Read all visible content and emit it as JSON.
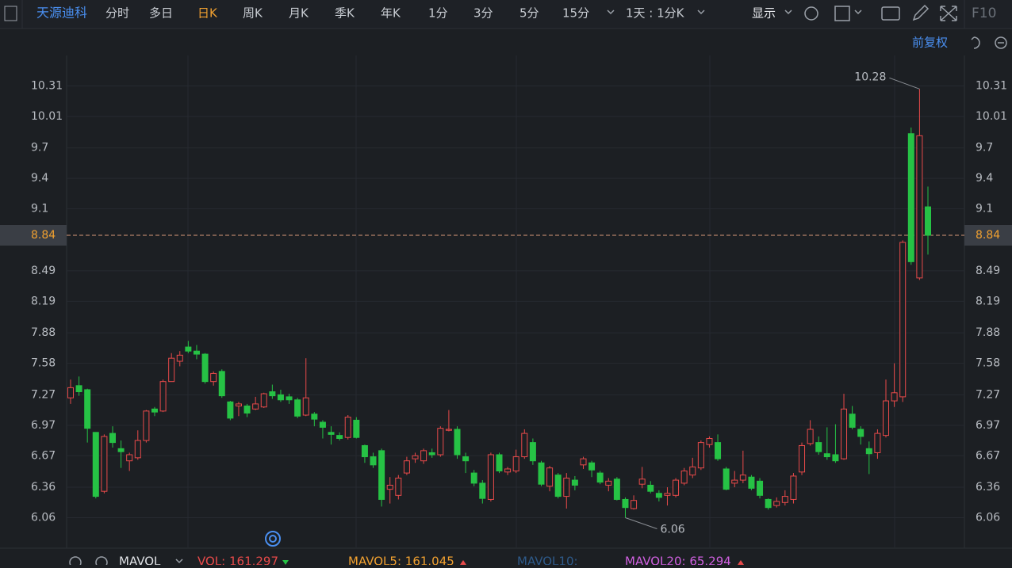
{
  "toolbar": {
    "stock": "天源迪科",
    "tabs": [
      "分时",
      "多日",
      "日K",
      "周K",
      "月K",
      "季K",
      "年K",
      "1分",
      "3分",
      "5分",
      "15分"
    ],
    "active_tab": 2,
    "period": "1天 : 1分K",
    "display": "显示",
    "f10": "F10"
  },
  "adjust": "前复权",
  "chart_data": {
    "type": "candlestick",
    "up_color": "#e84a4a",
    "down_color": "#26c245",
    "open": [
      7.24,
      7.36,
      7.32,
      6.9,
      6.32,
      6.89,
      6.74,
      6.62,
      6.65,
      6.82,
      7.13,
      7.11,
      7.4,
      7.6,
      7.74,
      7.7,
      7.67,
      7.4,
      7.5,
      7.2,
      7.16,
      7.16,
      7.13,
      7.15,
      7.3,
      7.27,
      7.25,
      7.22,
      7.07,
      7.08,
      7.0,
      6.9,
      6.87,
      6.85,
      7.02,
      6.77,
      6.66,
      6.72,
      6.34,
      6.28,
      6.5,
      6.64,
      6.62,
      6.7,
      6.68,
      6.92,
      6.93,
      6.66,
      6.5,
      6.4,
      6.24,
      6.68,
      6.51,
      6.52,
      6.66,
      6.8,
      6.6,
      6.37,
      6.48,
      6.27,
      6.43,
      6.58,
      6.6,
      6.5,
      6.38,
      6.44,
      6.24,
      6.15,
      6.39,
      6.38,
      6.3,
      6.28,
      6.28,
      6.4,
      6.48,
      6.55,
      6.78,
      6.8,
      6.54,
      6.4,
      6.43,
      6.46,
      6.42,
      6.24,
      6.18,
      6.21,
      6.24,
      6.51,
      6.79,
      6.8,
      6.69,
      6.68,
      6.64,
      7.08,
      6.93,
      6.74,
      6.7,
      6.87,
      7.21,
      7.25,
      9.84,
      8.42,
      9.12
    ],
    "high": [
      7.42,
      7.45,
      7.33,
      6.9,
      6.88,
      6.96,
      6.82,
      6.7,
      6.92,
      7.12,
      7.15,
      7.42,
      7.68,
      7.7,
      7.8,
      7.76,
      7.68,
      7.5,
      7.52,
      7.21,
      7.2,
      7.18,
      7.25,
      7.29,
      7.37,
      7.32,
      7.28,
      7.24,
      7.63,
      7.1,
      7.02,
      6.96,
      6.9,
      7.07,
      7.05,
      6.78,
      6.7,
      6.74,
      6.46,
      6.48,
      6.66,
      6.7,
      6.74,
      6.74,
      6.96,
      7.12,
      6.96,
      6.7,
      6.53,
      6.43,
      6.7,
      6.7,
      6.56,
      6.73,
      6.93,
      6.84,
      6.62,
      6.57,
      6.5,
      6.5,
      6.47,
      6.66,
      6.62,
      6.52,
      6.45,
      6.46,
      6.26,
      6.28,
      6.56,
      6.42,
      6.33,
      6.36,
      6.45,
      6.55,
      6.65,
      6.82,
      6.86,
      6.88,
      6.56,
      6.52,
      6.72,
      6.48,
      6.45,
      6.25,
      6.26,
      6.33,
      6.5,
      6.8,
      7.02,
      6.86,
      6.95,
      6.98,
      7.28,
      7.16,
      6.96,
      6.81,
      6.93,
      7.42,
      7.58,
      8.79,
      9.9,
      10.28,
      9.32
    ],
    "low": [
      7.18,
      7.26,
      6.8,
      6.25,
      6.3,
      6.75,
      6.55,
      6.52,
      6.63,
      6.8,
      7.06,
      7.1,
      7.4,
      7.55,
      7.68,
      7.62,
      7.38,
      7.36,
      7.24,
      7.02,
      7.06,
      7.05,
      7.12,
      7.14,
      7.23,
      7.2,
      7.18,
      7.04,
      7.06,
      6.96,
      6.84,
      6.78,
      6.82,
      6.83,
      6.84,
      6.6,
      6.55,
      6.17,
      6.2,
      6.24,
      6.48,
      6.6,
      6.59,
      6.65,
      6.66,
      6.91,
      6.64,
      6.5,
      6.37,
      6.2,
      6.22,
      6.5,
      6.48,
      6.5,
      6.64,
      6.58,
      6.37,
      6.32,
      6.25,
      6.15,
      6.33,
      6.54,
      6.46,
      6.39,
      6.32,
      6.23,
      6.06,
      6.14,
      6.35,
      6.3,
      6.22,
      6.18,
      6.26,
      6.38,
      6.45,
      6.53,
      6.75,
      6.62,
      6.33,
      6.36,
      6.4,
      6.33,
      6.25,
      6.14,
      6.16,
      6.18,
      6.2,
      6.48,
      6.77,
      6.68,
      6.63,
      6.6,
      6.63,
      6.93,
      6.78,
      6.49,
      6.64,
      6.85,
      7.15,
      7.2,
      8.55,
      8.4,
      8.65
    ],
    "close": [
      7.34,
      7.3,
      6.94,
      6.27,
      6.86,
      6.8,
      6.71,
      6.68,
      6.82,
      7.11,
      7.1,
      7.4,
      7.63,
      7.66,
      7.7,
      7.67,
      7.4,
      7.48,
      7.26,
      7.04,
      7.18,
      7.09,
      7.18,
      7.28,
      7.26,
      7.22,
      7.22,
      7.06,
      7.24,
      7.03,
      6.95,
      6.88,
      6.84,
      7.05,
      6.85,
      6.66,
      6.58,
      6.24,
      6.38,
      6.45,
      6.62,
      6.67,
      6.72,
      6.68,
      6.94,
      6.93,
      6.68,
      6.62,
      6.4,
      6.25,
      6.68,
      6.52,
      6.54,
      6.66,
      6.89,
      6.62,
      6.39,
      6.55,
      6.27,
      6.45,
      6.38,
      6.64,
      6.53,
      6.41,
      6.42,
      6.24,
      6.16,
      6.23,
      6.44,
      6.32,
      6.26,
      6.3,
      6.43,
      6.52,
      6.56,
      6.8,
      6.84,
      6.64,
      6.34,
      6.43,
      6.48,
      6.35,
      6.28,
      6.16,
      6.22,
      6.27,
      6.47,
      6.77,
      6.93,
      6.71,
      6.66,
      6.62,
      7.13,
      6.95,
      6.86,
      6.69,
      6.89,
      7.21,
      7.29,
      8.77,
      8.58,
      9.82,
      8.84
    ],
    "ylim": [
      5.76,
      10.61
    ],
    "yticks": [
      10.31,
      10.01,
      9.7,
      9.4,
      9.1,
      8.49,
      8.19,
      7.88,
      7.58,
      7.27,
      6.97,
      6.67,
      6.36,
      6.06
    ],
    "current_price": 8.84,
    "grid": true
  },
  "indicator": {
    "name": "MAVOL",
    "vol": "VOL: 161.297",
    "mavol5": "MAVOL5: 161.045",
    "mavol10": "MAVOL10:",
    "mavol20": "MAVOL20: 65.294"
  }
}
